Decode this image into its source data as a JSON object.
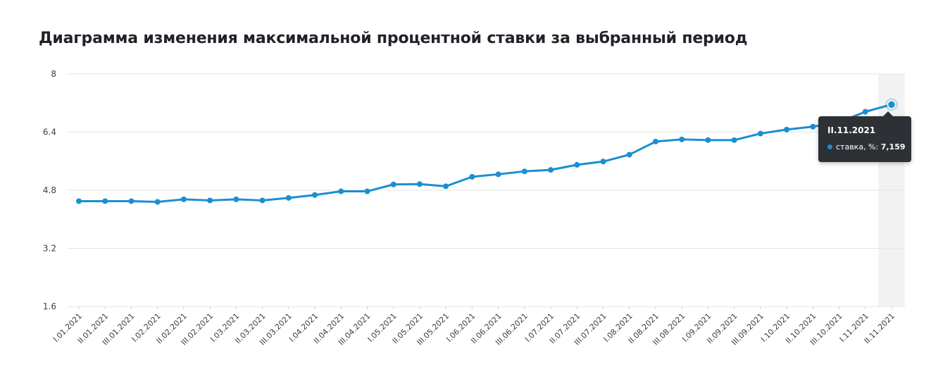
{
  "title": "Диаграмма изменения максимальной процентной ставки за выбранный период",
  "colors": {
    "line": "#1a8fd1",
    "grid": "#e6e6e6",
    "highlight_band": "#f2f2f2",
    "tooltip_bg": "#2d3035"
  },
  "chart_data": {
    "type": "line",
    "title": "Диаграмма изменения максимальной процентной ставки за выбранный период",
    "xlabel": "",
    "ylabel": "",
    "ylim": [
      1.6,
      8
    ],
    "yticks": [
      "1.6",
      "3.2",
      "4.8",
      "6.4",
      "8"
    ],
    "grid": true,
    "categories": [
      "I.01.2021",
      "II.01.2021",
      "III.01.2021",
      "I.02.2021",
      "II.02.2021",
      "III.02.2021",
      "I.03.2021",
      "II.03.2021",
      "III.03.2021",
      "I.04.2021",
      "II.04.2021",
      "III.04.2021",
      "I.05.2021",
      "II.05.2021",
      "III.05.2021",
      "I.06.2021",
      "II.06.2021",
      "III.06.2021",
      "I.07.2021",
      "II.07.2021",
      "III.07.2021",
      "I.08.2021",
      "II.08.2021",
      "III.08.2021",
      "I.09.2021",
      "II.09.2021",
      "III.09.2021",
      "I.10.2021",
      "II.10.2021",
      "III.10.2021",
      "I.11.2021",
      "II.11.2021"
    ],
    "series": [
      {
        "values": [
          4.5,
          4.5,
          4.5,
          4.48,
          4.55,
          4.52,
          4.55,
          4.52,
          4.59,
          4.67,
          4.77,
          4.77,
          4.96,
          4.97,
          4.91,
          5.17,
          5.24,
          5.32,
          5.36,
          5.5,
          5.59,
          5.78,
          6.14,
          6.2,
          6.18,
          6.18,
          6.36,
          6.47,
          6.55,
          6.67,
          6.96,
          7.159
        ]
      }
    ],
    "tooltip": {
      "category": "II.11.2021",
      "series_label": "ставка, %:",
      "value": "7,159"
    }
  }
}
